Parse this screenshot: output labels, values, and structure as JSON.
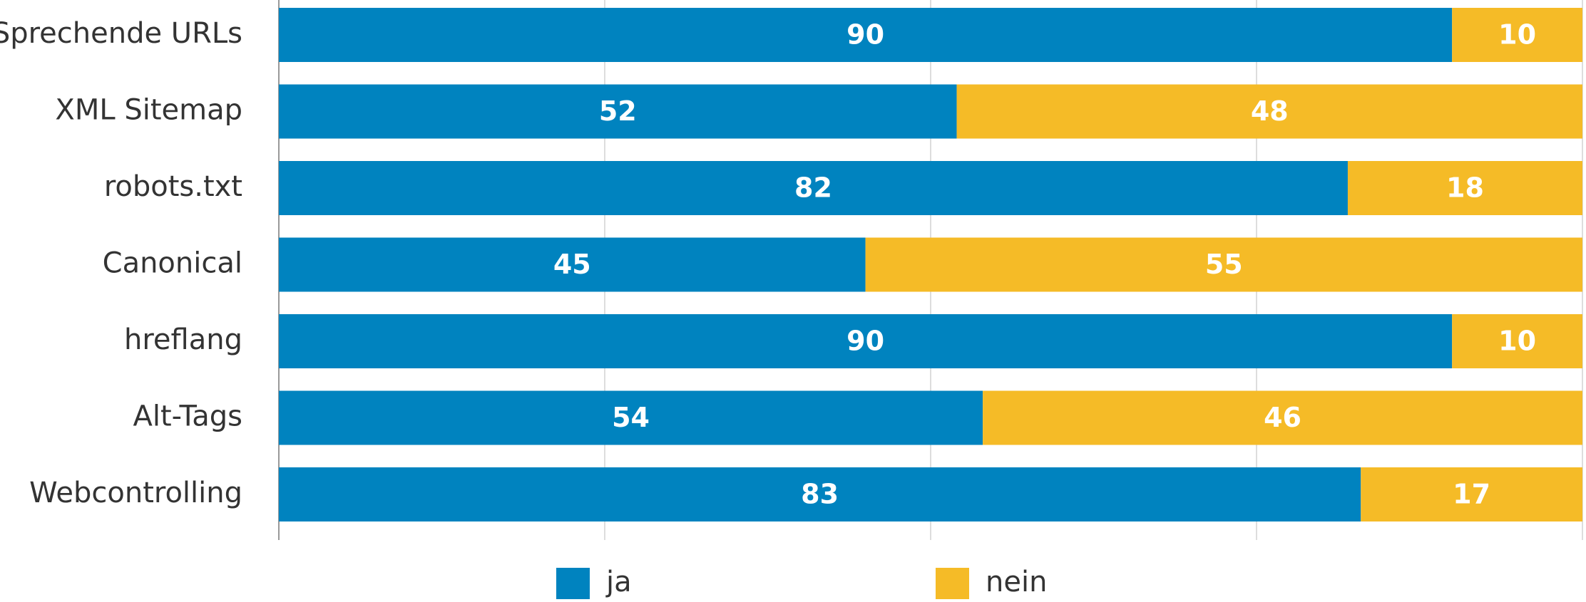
{
  "chart_data": {
    "type": "stacked-bar-horizontal",
    "categories": [
      "Sprechende URLs",
      "XML Sitemap",
      "robots.txt",
      "Canonical",
      "hreflang",
      "Alt-Tags",
      "Webcontrolling"
    ],
    "series": [
      {
        "name": "ja",
        "color": "#0083bf",
        "values": [
          90,
          52,
          82,
          45,
          90,
          54,
          83
        ]
      },
      {
        "name": "nein",
        "color": "#f5bb27",
        "values": [
          10,
          48,
          18,
          55,
          10,
          46,
          17
        ]
      }
    ],
    "xlim": [
      0,
      100
    ],
    "xticks": [
      0,
      25,
      50,
      75,
      100
    ],
    "grid": true
  }
}
